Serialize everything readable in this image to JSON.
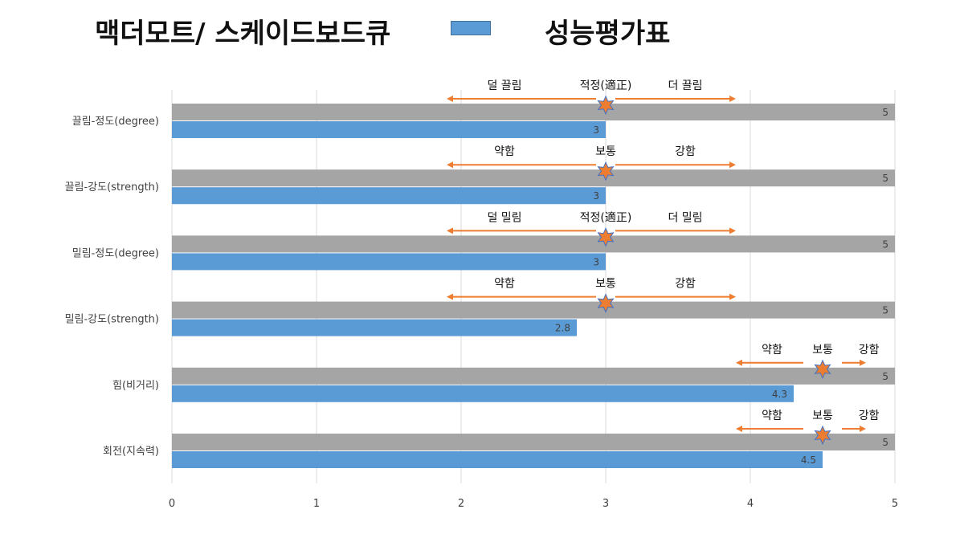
{
  "title": "맥더모트/ 스케이드보드큐",
  "subtitle": "성능평가표",
  "colors": {
    "gray_bar": "#a5a5a5",
    "blue_bar": "#5b9bd5",
    "arrow": "#ed7d31",
    "star_fill": "#ed7d31",
    "star_stroke": "#4472c4",
    "grid": "#d9d9d9",
    "text": "#404040"
  },
  "chart_data": {
    "type": "bar",
    "orientation": "horizontal",
    "categories": [
      "끌림-정도(degree)",
      "끌림-강도(strength)",
      "밀림-정도(degree)",
      "밀림-강도(strength)",
      "힘(비거리)",
      "회전(지속력)"
    ],
    "series": [
      {
        "values": [
          5,
          5,
          5,
          5,
          5,
          5
        ]
      },
      {
        "values": [
          3,
          3,
          3,
          2.8,
          4.3,
          4.5
        ]
      }
    ],
    "xlim": [
      0,
      5
    ],
    "xticks": [
      "0",
      "1",
      "2",
      "3",
      "4",
      "5"
    ],
    "grid": true,
    "annotations": [
      {
        "left": "덜 끌림",
        "center": "적정(適正)",
        "right": "더 끌림",
        "star": 3,
        "arrow_from": 1.9,
        "arrow_to": 3.9
      },
      {
        "left": "약함",
        "center": "보통",
        "right": "강함",
        "star": 3,
        "arrow_from": 1.9,
        "arrow_to": 3.9
      },
      {
        "left": "덜 밀림",
        "center": "적정(適正)",
        "right": "더 밀림",
        "star": 3,
        "arrow_from": 1.9,
        "arrow_to": 3.9
      },
      {
        "left": "약함",
        "center": "보통",
        "right": "강함",
        "star": 3,
        "arrow_from": 1.9,
        "arrow_to": 3.9
      },
      {
        "left": "약함",
        "center": "보통",
        "right": "강함",
        "star": 4.5,
        "arrow_from": 3.9,
        "arrow_to": 4.8
      },
      {
        "left": "약함",
        "center": "보통",
        "right": "강함",
        "star": 4.5,
        "arrow_from": 3.9,
        "arrow_to": 4.8
      }
    ]
  }
}
